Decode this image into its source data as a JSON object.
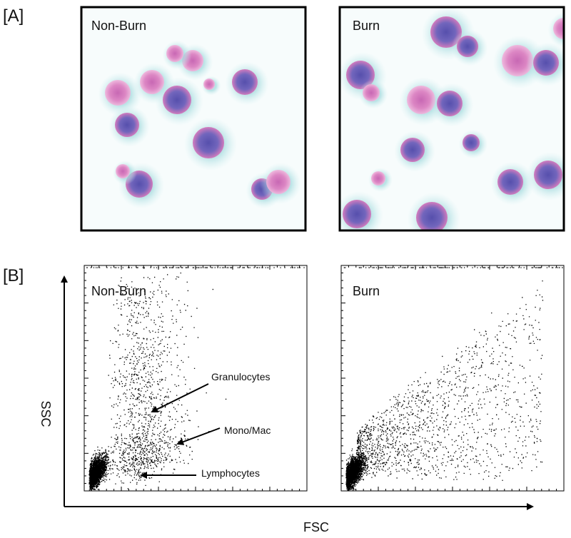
{
  "panel_a": {
    "label": "[A]",
    "panels": [
      {
        "title": "Non-Burn"
      },
      {
        "title": "Burn"
      }
    ]
  },
  "panel_b": {
    "label": "[B]",
    "panels": [
      {
        "title": "Non-Burn"
      },
      {
        "title": "Burn"
      }
    ],
    "y_axis_label": "SSC",
    "x_axis_label": "FSC",
    "annotations": [
      "Granulocytes",
      "Mono/Mac",
      "Lymphocytes"
    ]
  }
}
